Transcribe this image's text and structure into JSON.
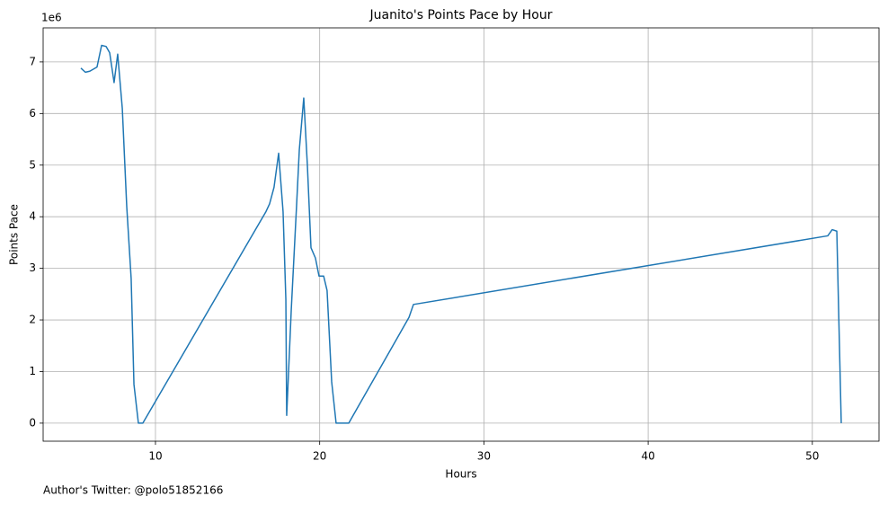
{
  "chart_data": {
    "type": "line",
    "title": "Juanito's Points Pace by Hour",
    "x_label": "Hours",
    "y_label": "Points Pace",
    "y_offset_label": "1e6",
    "footer": "Author's Twitter: @polo51852166",
    "x": [
      5.46,
      5.73,
      6.0,
      6.44,
      6.72,
      6.99,
      7.21,
      7.48,
      7.7,
      7.98,
      8.25,
      8.52,
      8.69,
      8.96,
      9.23,
      16.73,
      16.95,
      17.22,
      17.5,
      17.77,
      17.94,
      17.99,
      18.27,
      18.59,
      18.76,
      19.03,
      19.25,
      19.47,
      19.74,
      19.96,
      20.24,
      20.45,
      20.73,
      21.0,
      21.77,
      25.44,
      25.71,
      50.94,
      51.21,
      51.49,
      51.76
    ],
    "series": [
      {
        "name": "Points Pace",
        "color": "#1f77b4",
        "values": [
          6.88,
          6.8,
          6.82,
          6.9,
          7.32,
          7.3,
          7.18,
          6.6,
          7.15,
          6.1,
          4.2,
          2.8,
          0.75,
          0.0,
          0.0,
          4.1,
          4.25,
          4.57,
          5.23,
          4.1,
          2.4,
          0.15,
          2.2,
          4.2,
          5.3,
          6.3,
          5.0,
          3.4,
          3.2,
          2.85,
          2.85,
          2.57,
          0.8,
          0.0,
          0.0,
          2.05,
          2.3,
          3.63,
          3.75,
          3.72,
          0.0
        ]
      }
    ],
    "xlim": [
      3.16,
      54.06
    ],
    "ylim": [
      -0.35,
      7.66
    ],
    "xticks": [
      10,
      20,
      30,
      40,
      50
    ],
    "yticks": [
      0,
      1,
      2,
      3,
      4,
      5,
      6,
      7
    ],
    "grid": true
  }
}
